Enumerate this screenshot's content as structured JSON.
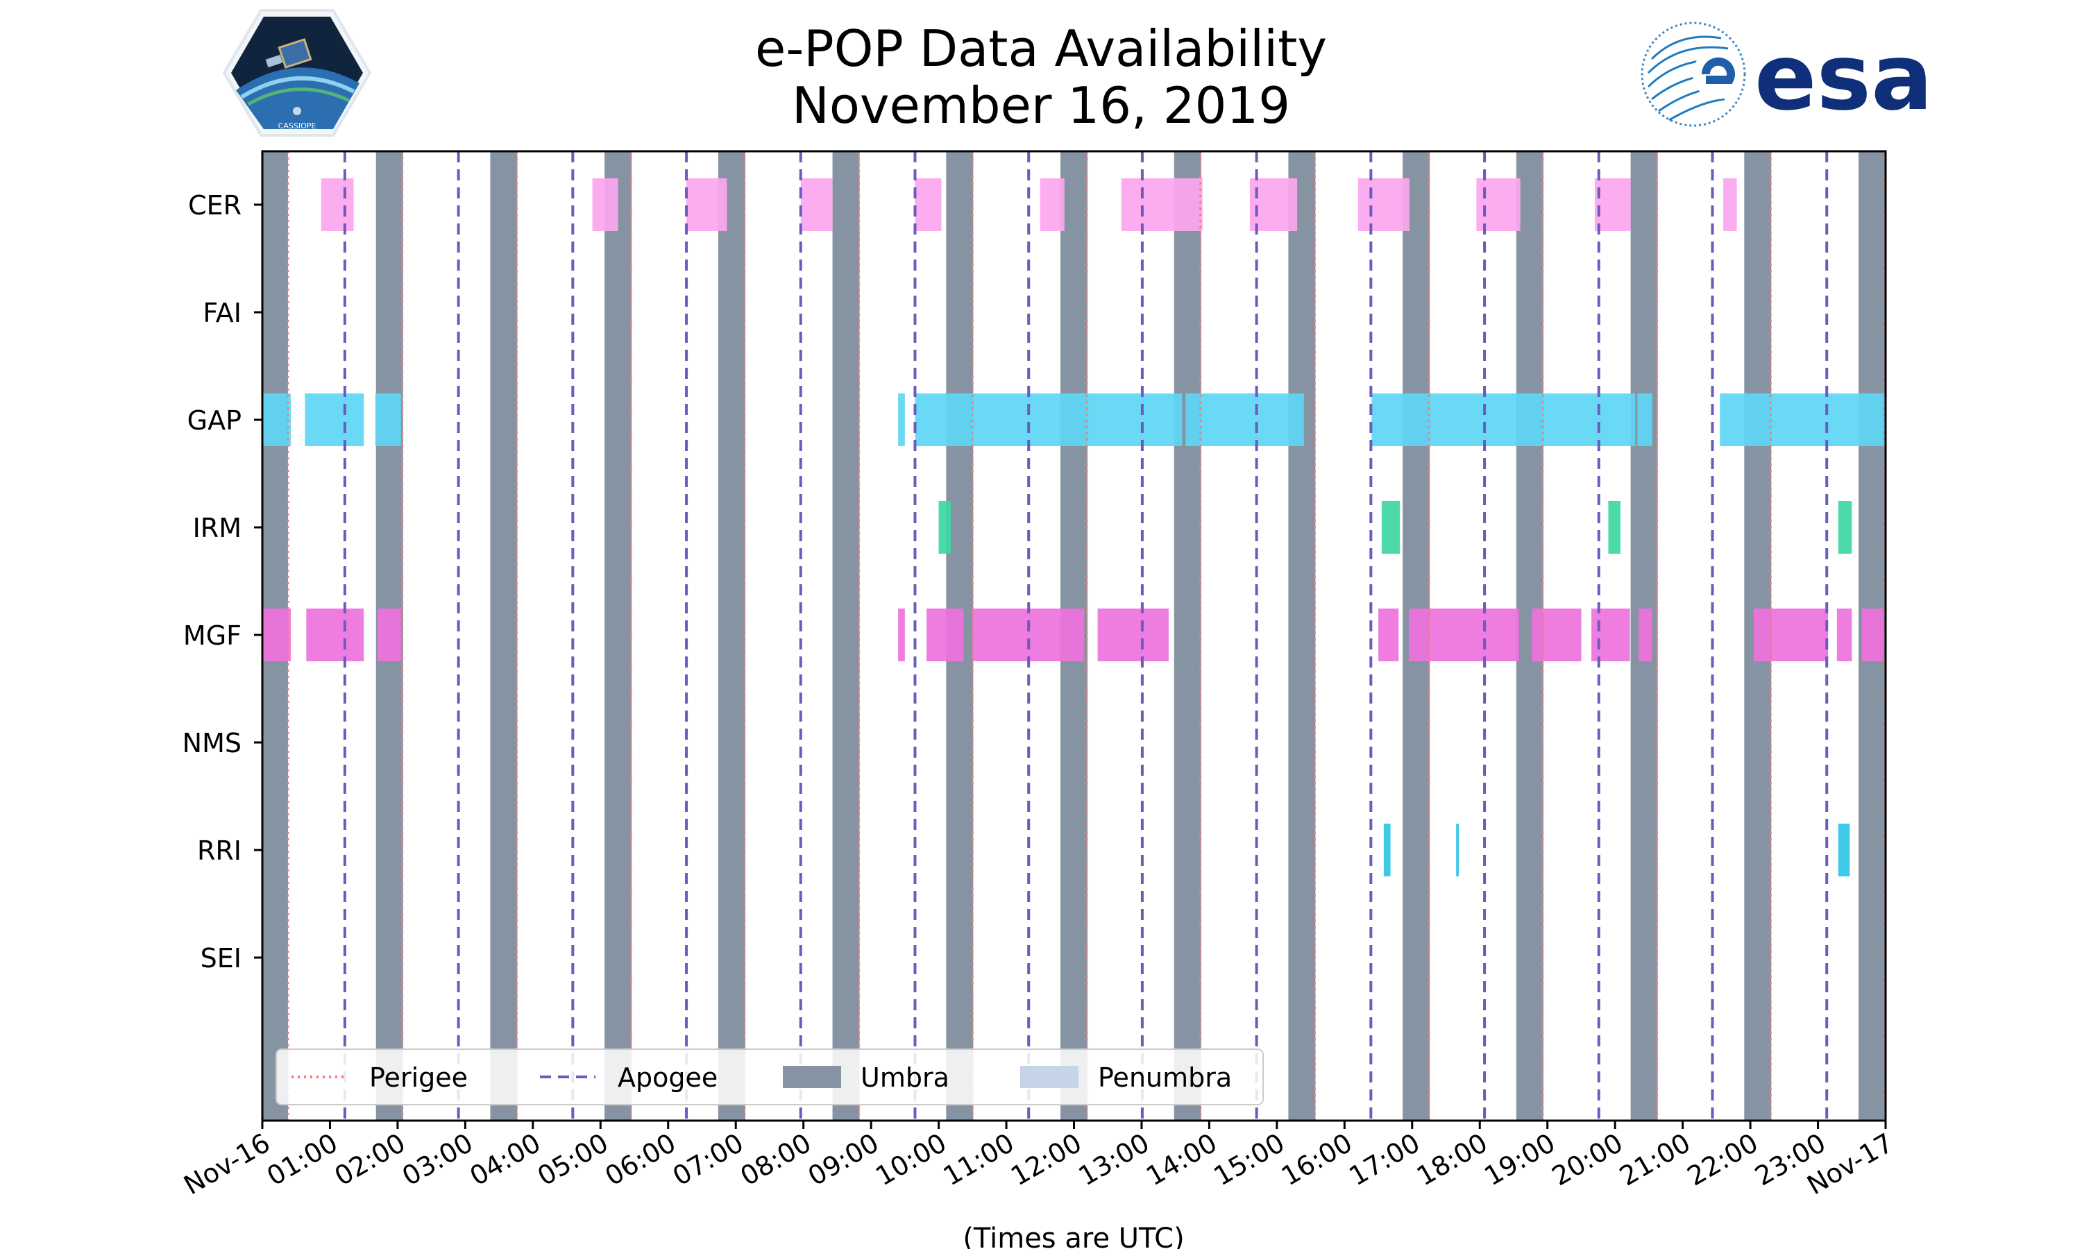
{
  "header": {
    "title_line1": "e-POP Data Availability",
    "title_line2": "November 16, 2019"
  },
  "logos": {
    "left_text": "CASSIOPE",
    "right_text": "esa"
  },
  "chart_data": {
    "type": "timeline",
    "title": "e-POP Data Availability November 16, 2019",
    "xlabel": "(Times are UTC)",
    "ylabel": "",
    "xlim_hours": [
      0,
      24
    ],
    "x_tick_hours": [
      0,
      1,
      2,
      3,
      4,
      5,
      6,
      7,
      8,
      9,
      10,
      11,
      12,
      13,
      14,
      15,
      16,
      17,
      18,
      19,
      20,
      21,
      22,
      23,
      24
    ],
    "x_tick_labels": [
      "Nov-16",
      "01:00",
      "02:00",
      "03:00",
      "04:00",
      "05:00",
      "06:00",
      "07:00",
      "08:00",
      "09:00",
      "10:00",
      "11:00",
      "12:00",
      "13:00",
      "14:00",
      "15:00",
      "16:00",
      "17:00",
      "18:00",
      "19:00",
      "20:00",
      "21:00",
      "22:00",
      "23:00",
      "Nov-17"
    ],
    "instruments": [
      "CER",
      "FAI",
      "GAP",
      "IRM",
      "MGF",
      "NMS",
      "RRI",
      "SEI"
    ],
    "colors": {
      "CER": "#fba7ee",
      "FAI": "#fba7ee",
      "GAP": "#5fd6f4",
      "IRM": "#3ed7a4",
      "MGF": "#ee72dd",
      "NMS": "#ee72dd",
      "RRI": "#2fc5e4",
      "SEI": "#2fc5e4",
      "umbra": "#8593a3",
      "penumbra": "#c5d4e6",
      "perigee": "#f47a7a",
      "apogee": "#6a5cbf"
    },
    "umbra_intervals_hours": [
      [
        0.0,
        0.38
      ],
      [
        1.68,
        2.08
      ],
      [
        3.37,
        3.77
      ],
      [
        5.06,
        5.46
      ],
      [
        6.74,
        7.14
      ],
      [
        8.43,
        8.83
      ],
      [
        10.11,
        10.51
      ],
      [
        11.8,
        12.2
      ],
      [
        13.48,
        13.88
      ],
      [
        15.17,
        15.57
      ],
      [
        16.86,
        17.26
      ],
      [
        18.54,
        18.94
      ],
      [
        20.23,
        20.63
      ],
      [
        21.91,
        22.31
      ],
      [
        23.6,
        24.0
      ]
    ],
    "perigee_hours": [
      0.38,
      2.07,
      3.76,
      5.45,
      7.13,
      8.82,
      10.5,
      12.19,
      13.87,
      15.56,
      17.25,
      18.93,
      20.62,
      22.3,
      23.98
    ],
    "apogee_hours": [
      1.22,
      2.9,
      4.59,
      6.27,
      7.96,
      9.65,
      11.33,
      13.01,
      14.7,
      16.39,
      18.07,
      19.76,
      21.44,
      23.13
    ],
    "availability_hours": {
      "CER": [
        [
          0.87,
          1.35
        ],
        [
          4.88,
          5.26
        ],
        [
          6.27,
          6.87
        ],
        [
          7.96,
          8.43
        ],
        [
          9.65,
          10.04
        ],
        [
          11.5,
          11.86
        ],
        [
          12.7,
          13.9
        ],
        [
          14.6,
          15.3
        ],
        [
          16.2,
          16.96
        ],
        [
          17.95,
          18.6
        ],
        [
          19.7,
          20.23
        ],
        [
          21.6,
          21.8
        ]
      ],
      "FAI": [],
      "GAP": [
        [
          0.0,
          0.42
        ],
        [
          0.63,
          1.5
        ],
        [
          1.67,
          2.05
        ],
        [
          9.4,
          9.5
        ],
        [
          9.65,
          13.6
        ],
        [
          13.65,
          15.4
        ],
        [
          16.4,
          20.3
        ],
        [
          20.33,
          20.55
        ],
        [
          21.55,
          24.0
        ]
      ],
      "IRM": [
        [
          10.0,
          10.18
        ],
        [
          16.55,
          16.82
        ],
        [
          19.9,
          20.08
        ],
        [
          23.3,
          23.5
        ]
      ],
      "MGF": [
        [
          0.0,
          0.42
        ],
        [
          0.65,
          1.5
        ],
        [
          1.7,
          2.05
        ],
        [
          9.4,
          9.5
        ],
        [
          9.82,
          10.37
        ],
        [
          10.5,
          12.15
        ],
        [
          12.35,
          13.4
        ],
        [
          16.5,
          16.8
        ],
        [
          16.95,
          18.58
        ],
        [
          18.77,
          19.5
        ],
        [
          19.65,
          20.22
        ],
        [
          20.35,
          20.55
        ],
        [
          22.05,
          23.15
        ],
        [
          23.28,
          23.5
        ],
        [
          23.65,
          23.97
        ]
      ],
      "NMS": [],
      "RRI": [
        [
          16.58,
          16.68
        ],
        [
          17.65,
          17.69
        ],
        [
          23.3,
          23.47
        ]
      ],
      "SEI": []
    },
    "legend": {
      "position": "bottom-left",
      "entries": [
        "Perigee",
        "Apogee",
        "Umbra",
        "Penumbra"
      ]
    }
  }
}
